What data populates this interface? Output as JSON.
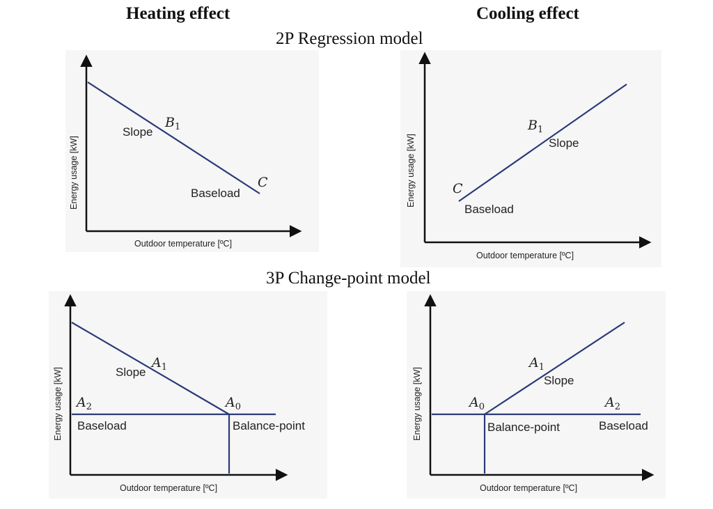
{
  "columns": {
    "heating": "Heating effect",
    "cooling": "Cooling effect"
  },
  "rows": {
    "regression": "2P Regression model",
    "changepoint": "3P Change-point model"
  },
  "axes": {
    "x_label": "Outdoor temperature [ºC]",
    "y_label": "Energy usage [kW]"
  },
  "labels": {
    "slope": "Slope",
    "baseload": "Baseload",
    "balance_point": "Balance-point"
  },
  "symbols": {
    "B": "B",
    "B_sub": "1",
    "C": "C",
    "A": "A",
    "A1_sub": "1",
    "A2_sub": "2",
    "A0_sub": "0"
  },
  "colors": {
    "line": "#2b3a78",
    "axis": "#111111"
  }
}
